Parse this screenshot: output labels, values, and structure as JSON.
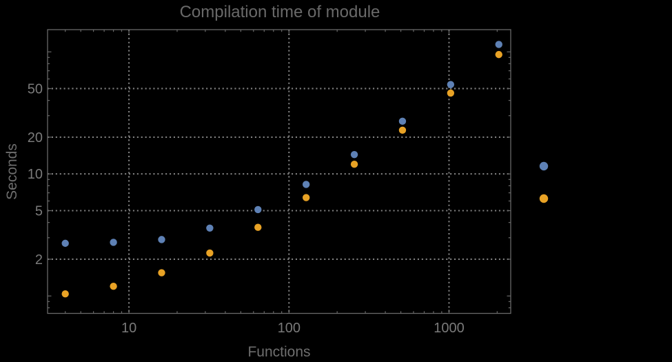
{
  "chart_data": {
    "type": "scatter",
    "title": "Compilation time of module",
    "xlabel": "Functions",
    "ylabel": "Seconds",
    "x_scale": "log",
    "y_scale": "log",
    "xlim": [
      3.1,
      2430
    ],
    "ylim": [
      0.72,
      152
    ],
    "grid": "dotted gridlines at labeled major ticks, both axes",
    "legend_position": "right-of-frame, point markers only, no visible labels",
    "x": [
      4,
      8,
      16,
      32,
      64,
      128,
      256,
      512,
      1024,
      2048
    ],
    "series": [
      {
        "marker": "filled-circle",
        "color": "#5e81b5",
        "values": [
          2.7,
          2.75,
          2.9,
          3.6,
          5.1,
          8.2,
          14.4,
          27,
          54,
          115
        ]
      },
      {
        "marker": "filled-circle",
        "color": "#e8a225",
        "values": [
          1.04,
          1.2,
          1.55,
          2.25,
          3.65,
          6.4,
          12,
          22.8,
          46,
          95
        ]
      }
    ],
    "xticks": [
      {
        "v": 10,
        "label": "10"
      },
      {
        "v": 100,
        "label": "100"
      },
      {
        "v": 1000,
        "label": "1000"
      }
    ],
    "yticks": [
      {
        "v": 2,
        "label": "2"
      },
      {
        "v": 5,
        "label": "5"
      },
      {
        "v": 10,
        "label": "10"
      },
      {
        "v": 20,
        "label": "20"
      },
      {
        "v": 50,
        "label": "50"
      }
    ],
    "y_unlabeled_major_ticks": [
      1,
      100
    ],
    "x_minor_ticks": [
      4,
      5,
      6,
      7,
      8,
      9,
      20,
      30,
      40,
      50,
      60,
      70,
      80,
      90,
      200,
      300,
      400,
      500,
      600,
      700,
      800,
      900,
      2000
    ],
    "y_minor_ticks": [
      0.8,
      0.9,
      3,
      4,
      6,
      7,
      8,
      9,
      30,
      40,
      60,
      70,
      80,
      90
    ],
    "legend_markers": [
      {
        "color": "#5e81b5"
      },
      {
        "color": "#e8a225"
      }
    ],
    "colors": {
      "background": "#000000",
      "frame": "#696969",
      "grid": "#808080",
      "tick_label": "#7a7a7a",
      "axis_label": "#6e6e6e",
      "title": "#696969"
    }
  }
}
